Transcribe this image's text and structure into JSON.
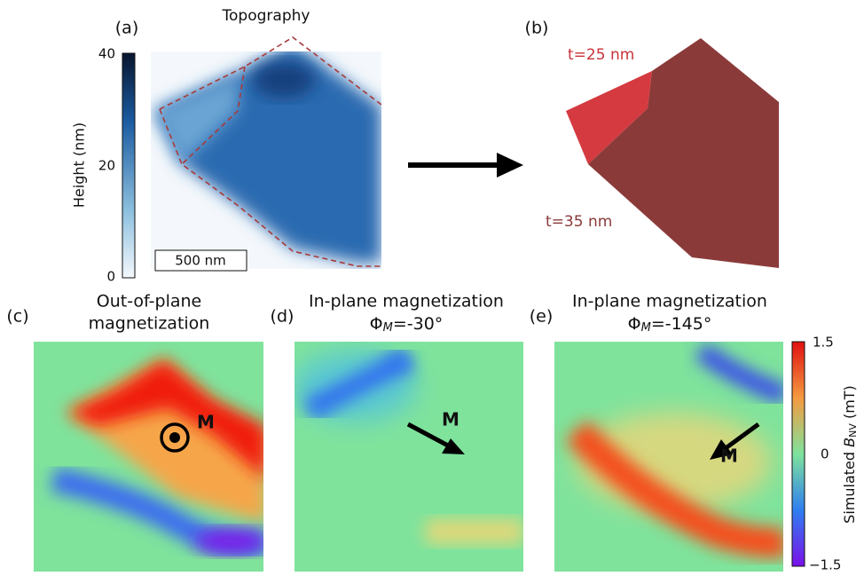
{
  "panel_a": {
    "label": "(a)",
    "title": "Topography",
    "colorbar_label": "Height (nm)",
    "colorbar_ticks": [
      "40",
      "20",
      "0"
    ],
    "scale_bar": "500 nm"
  },
  "panel_b": {
    "label": "(b)",
    "thin_label": "t=25 nm",
    "thick_label": "t=35 nm"
  },
  "panel_c": {
    "label": "(c)",
    "title_lines": [
      "Out-of-plane",
      "magnetization"
    ],
    "arrow_label": "M"
  },
  "panel_d": {
    "label": "(d)",
    "title": "In-plane magnetization",
    "angle_symbol": "Φ",
    "angle_subscript": "M",
    "angle_value": "=-30°",
    "arrow_label": "M"
  },
  "panel_e": {
    "label": "(e)",
    "title": "In-plane magnetization",
    "angle_symbol": "Φ",
    "angle_subscript": "M",
    "angle_value": "=-145°",
    "arrow_label": "M"
  },
  "colorbar": {
    "label_prefix": "Simulated ",
    "label_symbol": "B",
    "label_subscript": "NV",
    "label_unit": " (mT)",
    "ticks": [
      "1.5",
      "0",
      "−1.5"
    ]
  }
}
